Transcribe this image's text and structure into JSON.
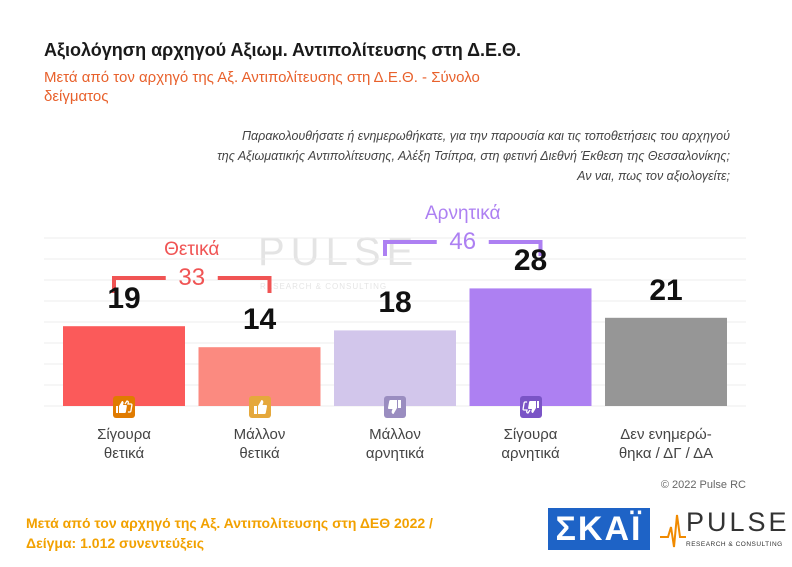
{
  "header": {
    "title": "Αξιολόγηση αρχηγού Αξιωμ. Αντιπολίτευσης στη Δ.Ε.Θ.",
    "subtitle": "Μετά από τον αρχηγό της Αξ. Αντιπολίτευσης στη Δ.Ε.Θ. - Σύνολο δείγματος"
  },
  "question": {
    "lines": [
      "Παρακολουθήσατε ή ενημερωθήκατε, για την παρουσία και τις τοποθετήσεις του αρχηγού",
      "της Αξιωματικής Αντιπολίτευσης, Αλέξη Τσίπρα, στη φετινή Διεθνή Έκθεση της Θεσσαλονίκης;",
      "Αν ναι, πως τον αξιολογείτε;"
    ]
  },
  "watermark": {
    "name": "PULSE",
    "tagline": "RESEARCH & CONSULTING"
  },
  "chart_data": {
    "type": "bar",
    "categories": [
      "Σίγουρα θετικά",
      "Μάλλον θετικά",
      "Μάλλον αρνητικά",
      "Σίγουρα αρνητικά",
      "Δεν ενημερώ-θηκα / ΔΓ / ΔΑ"
    ],
    "category_lines": [
      [
        "Σίγουρα",
        "θετικά"
      ],
      [
        "Μάλλον",
        "θετικά"
      ],
      [
        "Μάλλον",
        "αρνητικά"
      ],
      [
        "Σίγουρα",
        "αρνητικά"
      ],
      [
        "Δεν ενημερώ-",
        "θηκα / ΔΓ / ΔΑ"
      ]
    ],
    "values": [
      19,
      14,
      18,
      28,
      21
    ],
    "colors": [
      "#fb5a5a",
      "#fb8a80",
      "#d2c6eb",
      "#ad80f2",
      "#969696"
    ],
    "icons": [
      "double-thumbs-up-icon",
      "thumbs-up-icon",
      "thumbs-down-icon",
      "double-thumbs-down-icon",
      null
    ],
    "icon_colors": [
      "#e07b00",
      "#e5a83c",
      "#9a8dc0",
      "#7a54c6",
      null
    ],
    "groups": [
      {
        "label": "Θετικά",
        "total": "33",
        "color": "#f05454",
        "from": 0,
        "to": 1
      },
      {
        "label": "Αρνητικά",
        "total": "46",
        "color": "#ad80f2",
        "from": 2,
        "to": 3
      }
    ],
    "ylim": [
      0,
      40
    ],
    "grid": true
  },
  "footer": {
    "copyright": "© 2022 Pulse RC",
    "note_line1": "Μετά από τον αρχηγό της Αξ. Αντιπολίτευσης στη ΔΕΘ  2022  /",
    "note_line2": "Δείγμα:  1.012 συνεντεύξεις",
    "logo_skai": "ΣΚΑΪ",
    "logo_pulse": "PULSE",
    "logo_pulse_tagline": "RESEARCH & CONSULTING"
  }
}
